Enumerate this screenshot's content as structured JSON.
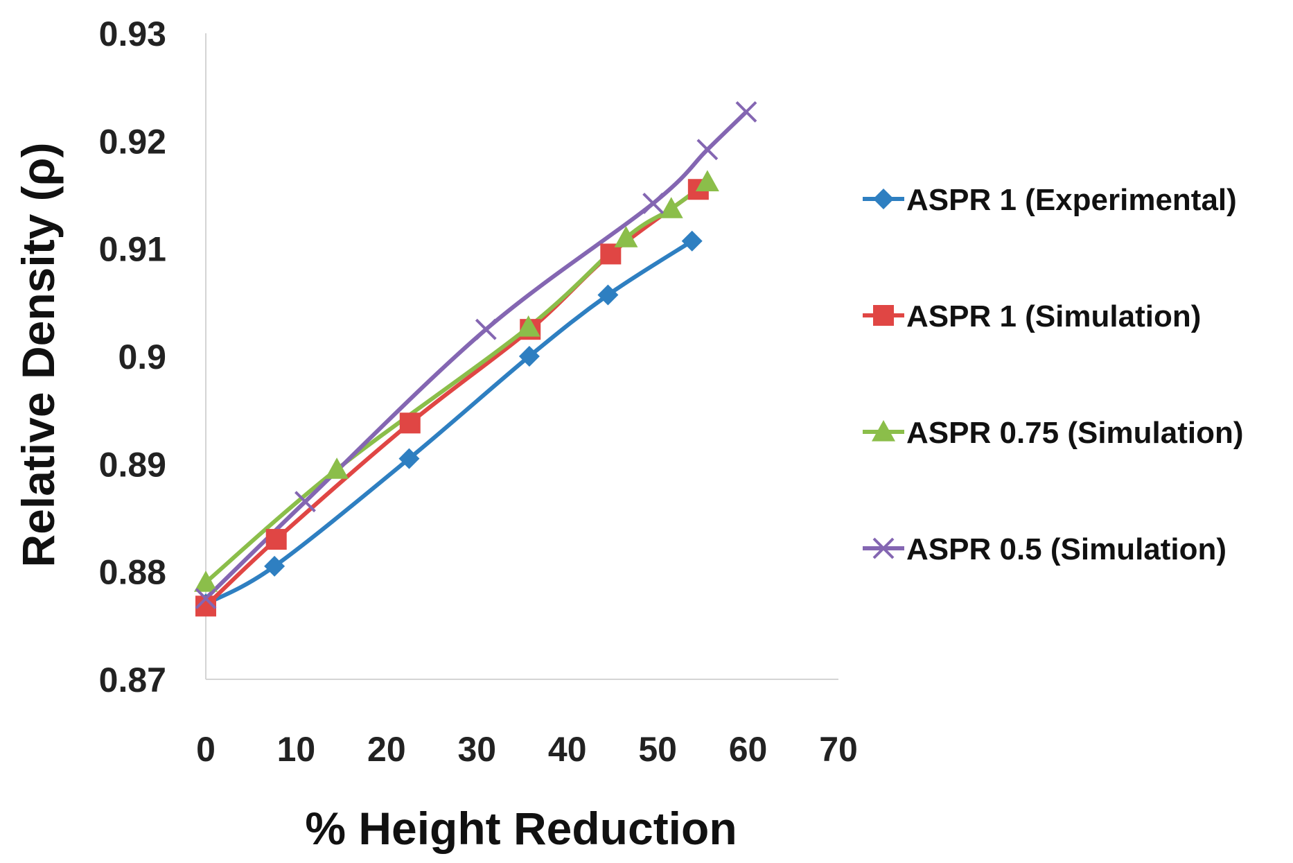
{
  "chart_data": {
    "type": "line",
    "title": "",
    "xlabel": "% Height Reduction",
    "ylabel": "Relative Density (ρ)",
    "xlim": [
      0,
      70
    ],
    "ylim": [
      0.87,
      0.93
    ],
    "x_ticks": [
      0,
      10,
      20,
      30,
      40,
      50,
      60,
      70
    ],
    "x_tick_labels": [
      "0",
      "10",
      "20",
      "30",
      "40",
      "50",
      "60",
      "70"
    ],
    "y_ticks": [
      0.87,
      0.88,
      0.89,
      0.9,
      0.91,
      0.92,
      0.93
    ],
    "y_tick_labels": [
      "0.87",
      "0.88",
      "0.89",
      "0.9",
      "0.91",
      "0.92",
      "0.93"
    ],
    "grid": false,
    "legend_position": "right",
    "series": [
      {
        "name": "ASPR 1 (Experimental)",
        "color": "#2E7FC1",
        "marker": "diamond",
        "x": [
          0,
          7.6,
          22.5,
          35.8,
          44.5,
          53.8
        ],
        "y": [
          0.877,
          0.8805,
          0.8905,
          0.9,
          0.9057,
          0.9107
        ]
      },
      {
        "name": "ASPR 1 (Simulation)",
        "color": "#E04644",
        "marker": "square",
        "x": [
          0,
          7.8,
          22.6,
          35.9,
          44.8,
          54.5
        ],
        "y": [
          0.8768,
          0.883,
          0.8938,
          0.9025,
          0.9095,
          0.9155
        ]
      },
      {
        "name": "ASPR 0.75 (Simulation)",
        "color": "#8BBE4A",
        "marker": "triangle",
        "x": [
          0,
          14.5,
          35.7,
          46.5,
          51.5,
          55.5
        ],
        "y": [
          0.879,
          0.8895,
          0.9027,
          0.911,
          0.9137,
          0.9162
        ]
      },
      {
        "name": "ASPR 0.5 (Simulation)",
        "color": "#8466B2",
        "marker": "x",
        "x": [
          0,
          11,
          31,
          49.5,
          55.5,
          59.8
        ],
        "y": [
          0.8775,
          0.8865,
          0.9025,
          0.9142,
          0.9192,
          0.9227
        ]
      }
    ]
  }
}
